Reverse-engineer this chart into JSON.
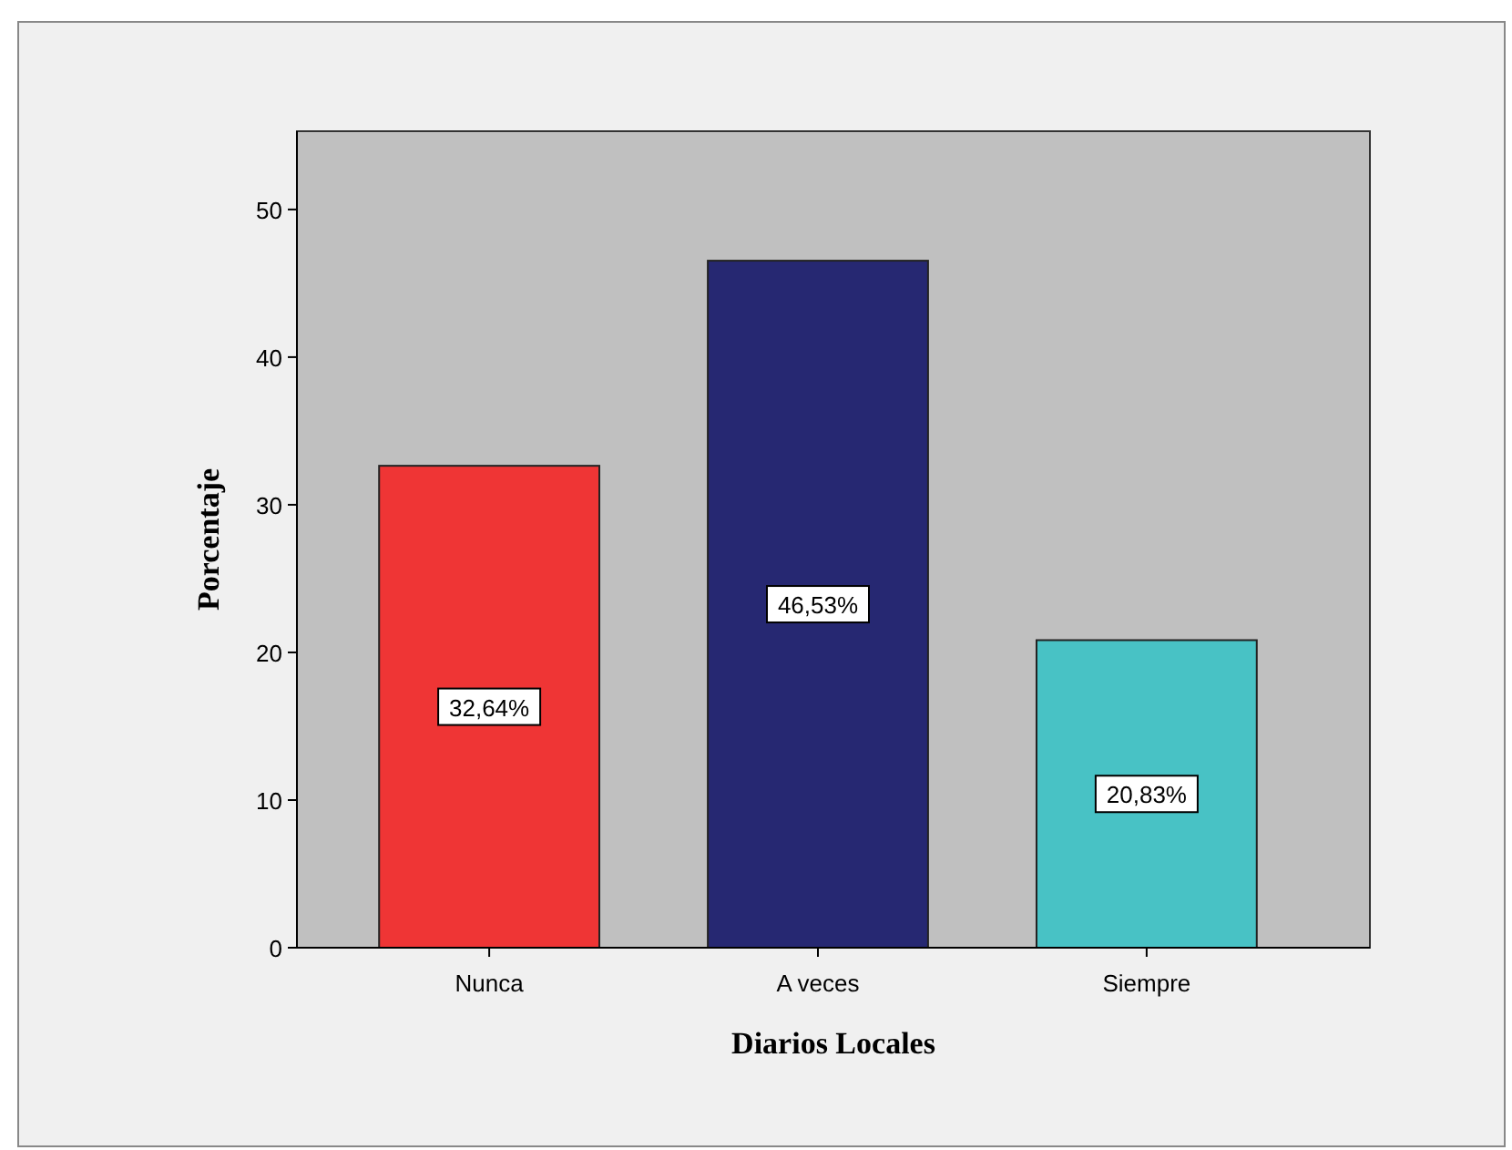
{
  "chart_data": {
    "type": "bar",
    "xlabel": "Diarios Locales",
    "ylabel": "Porcentaje",
    "categories": [
      "Nunca",
      "A veces",
      "Siempre"
    ],
    "values": [
      32.64,
      46.53,
      20.83
    ],
    "colors": [
      "#ef3535",
      "#262872",
      "#48c2c5"
    ],
    "value_labels": [
      "32,64%",
      "46,53%",
      "20,83%"
    ],
    "ylim": [
      0,
      55.3
    ],
    "yticks": [
      0,
      10,
      20,
      30,
      40,
      50
    ],
    "grid": false
  }
}
